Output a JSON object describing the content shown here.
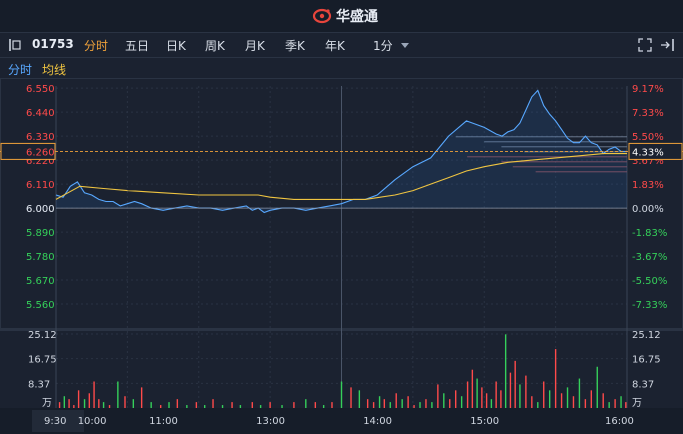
{
  "brand": {
    "name": "华盛通"
  },
  "toolbar": {
    "code": "01753",
    "periods": [
      "分时",
      "五日",
      "日K",
      "周K",
      "月K",
      "季K",
      "年K"
    ],
    "interval": "1分"
  },
  "subbar": {
    "time_label": "分时",
    "avg_label": "均线"
  },
  "colors": {
    "accent": "#f0a23a",
    "price_line": "#58a8ff",
    "avg_line": "#f0c541",
    "up": "#ff4a4a",
    "down": "#35d05a",
    "neutral": "#d0d6e0"
  },
  "chart_data": [
    {
      "type": "line",
      "x_ticks": [
        "9:30",
        "10:00",
        "11:00",
        "13:00",
        "14:00",
        "15:00",
        "16:00"
      ],
      "left_axis": [
        "6.550",
        "6.440",
        "6.330",
        "6.220",
        "6.110",
        "6.000",
        "5.890",
        "5.780",
        "5.670",
        "5.560"
      ],
      "right_axis": [
        "9.17%",
        "7.33%",
        "5.50%",
        "3.67%",
        "1.83%",
        "0.00%",
        "-1.83%",
        "-3.67%",
        "-5.50%",
        "-7.33%"
      ],
      "ylim": [
        5.45,
        6.56
      ],
      "prev_close": 6.0,
      "current_price": "6.260",
      "current_change": "4.33%",
      "series": [
        {
          "key": "price",
          "x": [
            0,
            6,
            12,
            18,
            24,
            30,
            36,
            42,
            48,
            54,
            60,
            66,
            72,
            80,
            90,
            100,
            110,
            120,
            130,
            140,
            150,
            160,
            165,
            170,
            175,
            180,
            190,
            200,
            210,
            220,
            230,
            240,
            250,
            260,
            270,
            285,
            300,
            315,
            330,
            345,
            360,
            370,
            375,
            380,
            385,
            390,
            395,
            400,
            405,
            410,
            415,
            420,
            425,
            430,
            435,
            440,
            445,
            450,
            455,
            460,
            465,
            470,
            475,
            480
          ],
          "y": [
            6.06,
            6.05,
            6.1,
            6.12,
            6.07,
            6.06,
            6.04,
            6.03,
            6.03,
            6.01,
            6.02,
            6.03,
            6.02,
            6.0,
            5.99,
            6.0,
            6.01,
            6.0,
            6.0,
            5.99,
            6.0,
            6.01,
            5.99,
            6.0,
            5.98,
            5.99,
            6.0,
            6.0,
            5.99,
            6.0,
            6.01,
            6.02,
            6.04,
            6.04,
            6.06,
            6.13,
            6.19,
            6.23,
            6.33,
            6.4,
            6.37,
            6.34,
            6.33,
            6.35,
            6.36,
            6.39,
            6.45,
            6.51,
            6.54,
            6.47,
            6.43,
            6.4,
            6.36,
            6.32,
            6.3,
            6.3,
            6.33,
            6.3,
            6.29,
            6.25,
            6.27,
            6.28,
            6.26,
            6.26
          ]
        },
        {
          "key": "avg",
          "x": [
            0,
            10,
            20,
            40,
            60,
            90,
            120,
            150,
            170,
            180,
            200,
            230,
            260,
            285,
            300,
            315,
            330,
            345,
            360,
            380,
            400,
            420,
            440,
            460,
            480
          ],
          "y": [
            6.04,
            6.07,
            6.1,
            6.09,
            6.08,
            6.07,
            6.06,
            6.06,
            6.06,
            6.05,
            6.04,
            6.04,
            6.04,
            6.06,
            6.08,
            6.11,
            6.14,
            6.17,
            6.19,
            6.21,
            6.22,
            6.23,
            6.24,
            6.25,
            6.25
          ]
        }
      ]
    },
    {
      "type": "bar",
      "y_axis": [
        "25.12",
        "16.75",
        "8.37"
      ],
      "unit": "万",
      "ylim": [
        0,
        25.12
      ],
      "x": [
        3,
        7,
        11,
        15,
        19,
        24,
        28,
        32,
        36,
        40,
        45,
        52,
        58,
        65,
        72,
        80,
        88,
        95,
        102,
        110,
        118,
        125,
        132,
        140,
        148,
        155,
        165,
        172,
        180,
        190,
        200,
        210,
        218,
        225,
        232,
        240,
        248,
        255,
        262,
        267,
        272,
        276,
        281,
        286,
        291,
        296,
        301,
        306,
        311,
        316,
        321,
        326,
        331,
        336,
        341,
        346,
        350,
        354,
        358,
        362,
        366,
        370,
        374,
        378,
        382,
        386,
        390,
        395,
        400,
        405,
        410,
        415,
        420,
        425,
        430,
        435,
        440,
        445,
        450,
        455,
        460,
        465,
        470,
        475,
        479
      ],
      "values": [
        2,
        4,
        3,
        1,
        6,
        3,
        5,
        9,
        3,
        2,
        1,
        9,
        4,
        3,
        7,
        2,
        1,
        2,
        3,
        1,
        2,
        1,
        3,
        1,
        2,
        1,
        2,
        1,
        2,
        1,
        2,
        3,
        2,
        1,
        2,
        9,
        7,
        6,
        3,
        2,
        4,
        3,
        2,
        5,
        3,
        4,
        1,
        2,
        3,
        2,
        8,
        5,
        3,
        6,
        4,
        9,
        13,
        10,
        7,
        5,
        3,
        9,
        6,
        25,
        12,
        16,
        8,
        11,
        4,
        2,
        9,
        6,
        20,
        5,
        7,
        4,
        10,
        3,
        6,
        14,
        5,
        2,
        3,
        4,
        2
      ],
      "colors": [
        "r",
        "g",
        "r",
        "r",
        "r",
        "g",
        "r",
        "r",
        "r",
        "g",
        "r",
        "g",
        "r",
        "g",
        "r",
        "g",
        "r",
        "g",
        "r",
        "g",
        "r",
        "g",
        "r",
        "g",
        "r",
        "g",
        "r",
        "g",
        "r",
        "g",
        "r",
        "g",
        "r",
        "g",
        "r",
        "g",
        "r",
        "g",
        "r",
        "r",
        "g",
        "r",
        "g",
        "r",
        "g",
        "r",
        "r",
        "g",
        "r",
        "g",
        "r",
        "g",
        "r",
        "r",
        "g",
        "r",
        "r",
        "g",
        "r",
        "r",
        "g",
        "r",
        "r",
        "g",
        "r",
        "r",
        "g",
        "r",
        "r",
        "g",
        "r",
        "g",
        "r",
        "r",
        "g",
        "r",
        "g",
        "r",
        "r",
        "g",
        "r",
        "g",
        "r",
        "g",
        "r"
      ]
    }
  ]
}
